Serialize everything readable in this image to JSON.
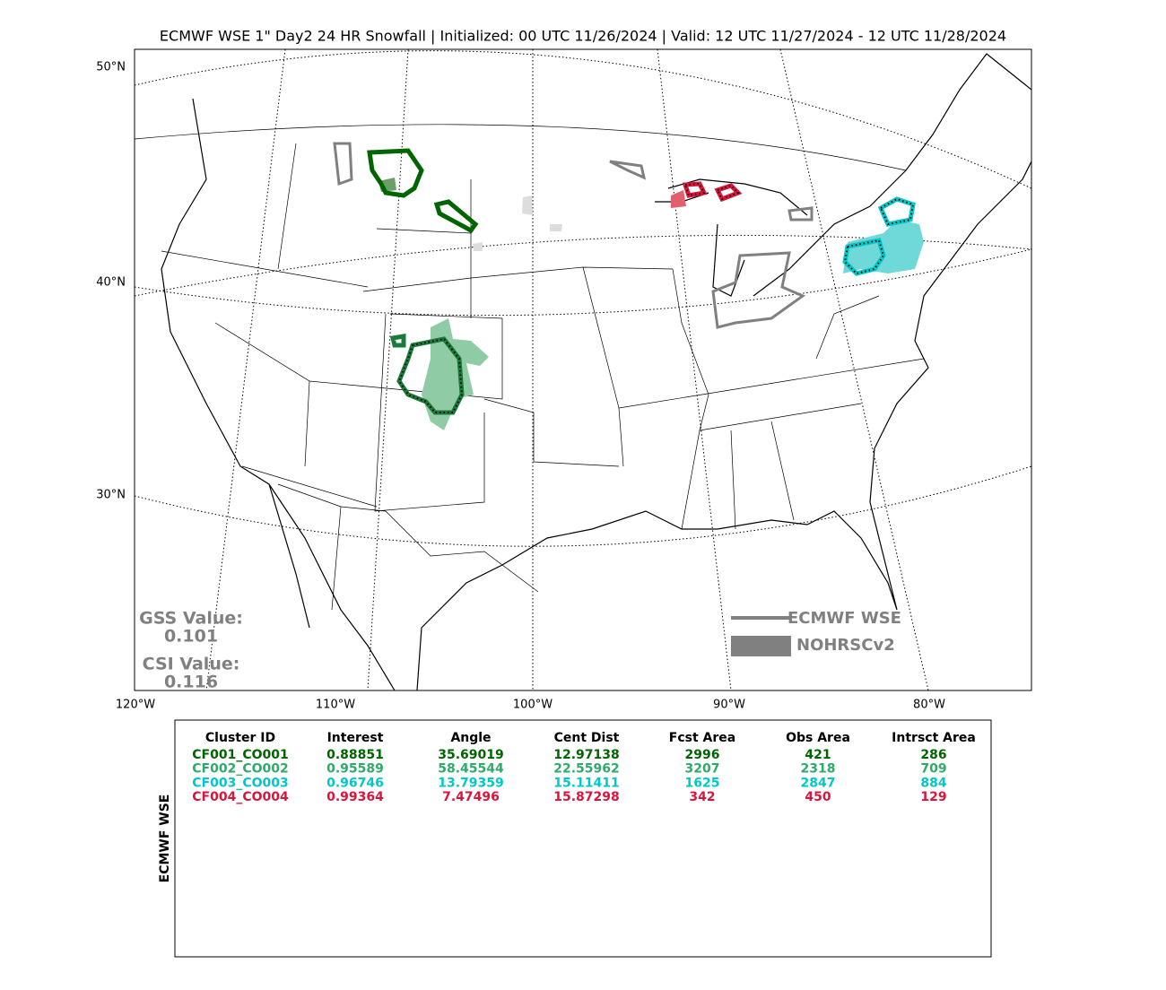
{
  "title": "ECMWF WSE 1\" Day2 24 HR Snowfall | Initialized: 00 UTC 11/26/2024 | Valid: 12 UTC 11/27/2024 - 12 UTC 11/28/2024",
  "lat_labels": [
    "50°N",
    "40°N",
    "30°N"
  ],
  "lon_labels": [
    "120°W",
    "110°W",
    "100°W",
    "90°W",
    "80°W"
  ],
  "legend": {
    "forecast": "ECMWF WSE",
    "observed": "NOHRSCv2"
  },
  "stats": {
    "gss_label": "GSS Value:",
    "gss": 0.101,
    "csi_label": "CSI Value:",
    "csi": 0.116
  },
  "table": {
    "side_label": "ECMWF WSE",
    "header": [
      "Cluster ID",
      "Interest",
      "Angle",
      "Cent Dist",
      "Fcst Area",
      "Obs Area",
      "Intrsct Area"
    ],
    "rows": [
      {
        "color": "#006400",
        "cells": [
          "CF001_CO001",
          0.88851,
          35.69019,
          12.97138,
          2996,
          421,
          286
        ]
      },
      {
        "color": "#2eaa6a",
        "cells": [
          "CF002_CO002",
          0.95589,
          58.45544,
          22.55962,
          3207,
          2318,
          709
        ]
      },
      {
        "color": "#00c8c8",
        "cells": [
          "CF003_CO003",
          0.96746,
          13.79359,
          15.11411,
          1625,
          2847,
          884
        ]
      },
      {
        "color": "#dc143c",
        "cells": [
          "CF004_CO004",
          0.99364,
          7.47496,
          15.87298,
          342,
          450,
          129
        ]
      }
    ]
  }
}
